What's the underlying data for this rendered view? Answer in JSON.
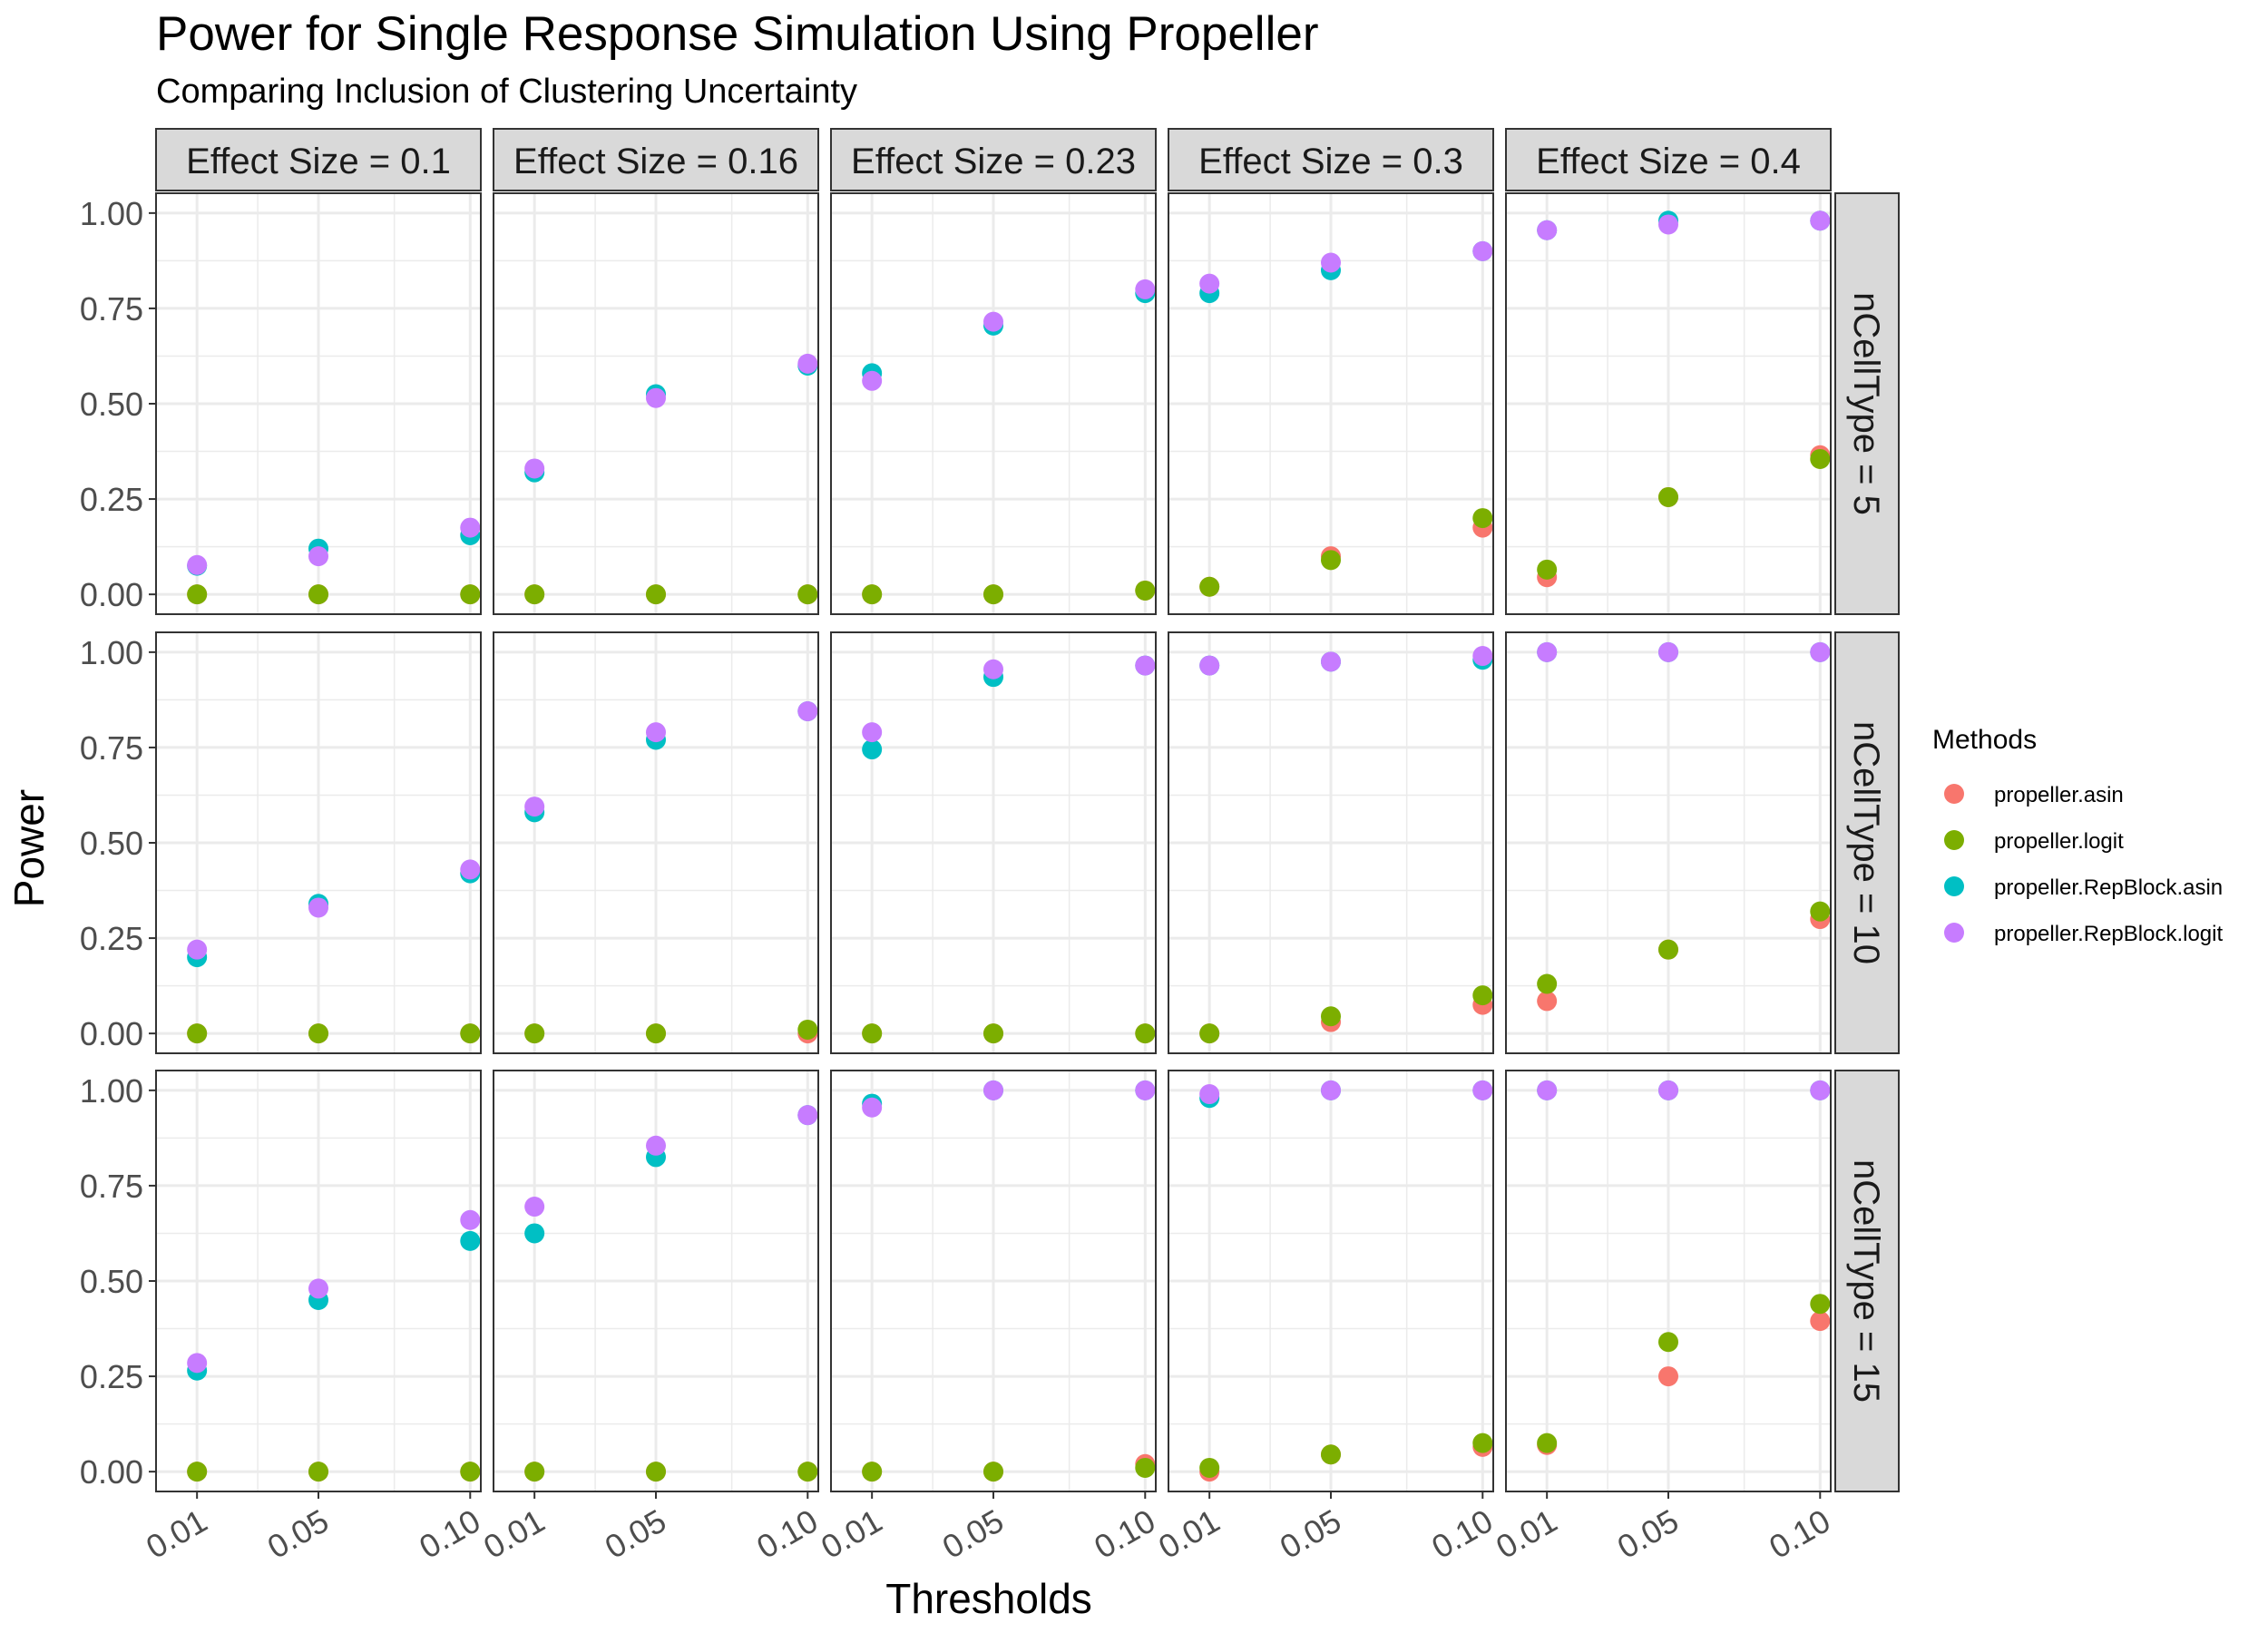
{
  "chart_data": {
    "type": "scatter",
    "title": "Power for Single Response Simulation Using Propeller",
    "subtitle": "Comparing Inclusion of Clustering Uncertainty",
    "xlabel": "Thresholds",
    "ylabel": "Power",
    "x_ticks": [
      "0.01",
      "0.05",
      "0.10"
    ],
    "x_values": [
      0.01,
      0.05,
      0.1
    ],
    "ylim": [
      0,
      1.0
    ],
    "y_ticks": [
      "0.00",
      "0.25",
      "0.50",
      "0.75",
      "1.00"
    ],
    "grid": true,
    "legend": {
      "title": "Methods",
      "position": "right"
    },
    "col_facets": [
      "Effect Size = 0.1",
      "Effect Size = 0.16",
      "Effect Size = 0.23",
      "Effect Size = 0.3",
      "Effect Size = 0.4"
    ],
    "row_facets": [
      "nCellType = 5",
      "nCellType = 10",
      "nCellType = 15"
    ],
    "series": [
      {
        "name": "propeller.asin",
        "color": "#F8766D"
      },
      {
        "name": "propeller.logit",
        "color": "#7CAE00"
      },
      {
        "name": "propeller.RepBlock.asin",
        "color": "#00BFC4"
      },
      {
        "name": "propeller.RepBlock.logit",
        "color": "#C77CFF"
      }
    ],
    "panels": [
      [
        {
          "propeller.asin": [
            0,
            0,
            0
          ],
          "propeller.logit": [
            0,
            0,
            0
          ],
          "propeller.RepBlock.asin": [
            0.075,
            0.12,
            0.155
          ],
          "propeller.RepBlock.logit": [
            0.077,
            0.1,
            0.175
          ]
        },
        {
          "propeller.asin": [
            0,
            0,
            0
          ],
          "propeller.logit": [
            0,
            0,
            0
          ],
          "propeller.RepBlock.asin": [
            0.32,
            0.525,
            0.6
          ],
          "propeller.RepBlock.logit": [
            0.33,
            0.515,
            0.605
          ]
        },
        {
          "propeller.asin": [
            0,
            0,
            0.01
          ],
          "propeller.logit": [
            0,
            0,
            0.01
          ],
          "propeller.RepBlock.asin": [
            0.58,
            0.705,
            0.79
          ],
          "propeller.RepBlock.logit": [
            0.56,
            0.715,
            0.8
          ]
        },
        {
          "propeller.asin": [
            0.02,
            0.1,
            0.175
          ],
          "propeller.logit": [
            0.02,
            0.09,
            0.2
          ],
          "propeller.RepBlock.asin": [
            0.79,
            0.85,
            0.9
          ],
          "propeller.RepBlock.logit": [
            0.815,
            0.87,
            0.9
          ]
        },
        {
          "propeller.asin": [
            0.045,
            0.255,
            0.365
          ],
          "propeller.logit": [
            0.065,
            0.255,
            0.355
          ],
          "propeller.RepBlock.asin": [
            0.955,
            0.98,
            0.98
          ],
          "propeller.RepBlock.logit": [
            0.955,
            0.97,
            0.98
          ]
        }
      ],
      [
        {
          "propeller.asin": [
            0,
            0,
            0
          ],
          "propeller.logit": [
            0,
            0,
            0
          ],
          "propeller.RepBlock.asin": [
            0.2,
            0.34,
            0.42
          ],
          "propeller.RepBlock.logit": [
            0.22,
            0.33,
            0.43
          ]
        },
        {
          "propeller.asin": [
            0,
            0,
            0
          ],
          "propeller.logit": [
            0,
            0,
            0.01
          ],
          "propeller.RepBlock.asin": [
            0.58,
            0.77,
            0.845
          ],
          "propeller.RepBlock.logit": [
            0.595,
            0.79,
            0.845
          ]
        },
        {
          "propeller.asin": [
            0,
            0,
            0
          ],
          "propeller.logit": [
            0,
            0,
            0
          ],
          "propeller.RepBlock.asin": [
            0.745,
            0.935,
            0.965
          ],
          "propeller.RepBlock.logit": [
            0.79,
            0.955,
            0.965
          ]
        },
        {
          "propeller.asin": [
            0,
            0.03,
            0.075
          ],
          "propeller.logit": [
            0,
            0.045,
            0.1
          ],
          "propeller.RepBlock.asin": [
            0.965,
            0.975,
            0.98
          ],
          "propeller.RepBlock.logit": [
            0.965,
            0.975,
            0.99
          ]
        },
        {
          "propeller.asin": [
            0.085,
            0.22,
            0.3
          ],
          "propeller.logit": [
            0.13,
            0.22,
            0.32
          ],
          "propeller.RepBlock.asin": [
            1.0,
            1.0,
            1.0
          ],
          "propeller.RepBlock.logit": [
            1.0,
            1.0,
            1.0
          ]
        }
      ],
      [
        {
          "propeller.asin": [
            0,
            0,
            0
          ],
          "propeller.logit": [
            0,
            0,
            0
          ],
          "propeller.RepBlock.asin": [
            0.265,
            0.45,
            0.605
          ],
          "propeller.RepBlock.logit": [
            0.285,
            0.48,
            0.66
          ]
        },
        {
          "propeller.asin": [
            0,
            0,
            0
          ],
          "propeller.logit": [
            0,
            0,
            0
          ],
          "propeller.RepBlock.asin": [
            0.625,
            0.825,
            0.935
          ],
          "propeller.RepBlock.logit": [
            0.695,
            0.855,
            0.935
          ]
        },
        {
          "propeller.asin": [
            0,
            0,
            0.02
          ],
          "propeller.logit": [
            0,
            0,
            0.01
          ],
          "propeller.RepBlock.asin": [
            0.965,
            1.0,
            1.0
          ],
          "propeller.RepBlock.logit": [
            0.955,
            1.0,
            1.0
          ]
        },
        {
          "propeller.asin": [
            0,
            0.045,
            0.065
          ],
          "propeller.logit": [
            0.01,
            0.045,
            0.075
          ],
          "propeller.RepBlock.asin": [
            0.98,
            1.0,
            1.0
          ],
          "propeller.RepBlock.logit": [
            0.99,
            1.0,
            1.0
          ]
        },
        {
          "propeller.asin": [
            0.07,
            0.25,
            0.395
          ],
          "propeller.logit": [
            0.075,
            0.34,
            0.44
          ],
          "propeller.RepBlock.asin": [
            1.0,
            1.0,
            1.0
          ],
          "propeller.RepBlock.logit": [
            1.0,
            1.0,
            1.0
          ]
        }
      ]
    ]
  }
}
